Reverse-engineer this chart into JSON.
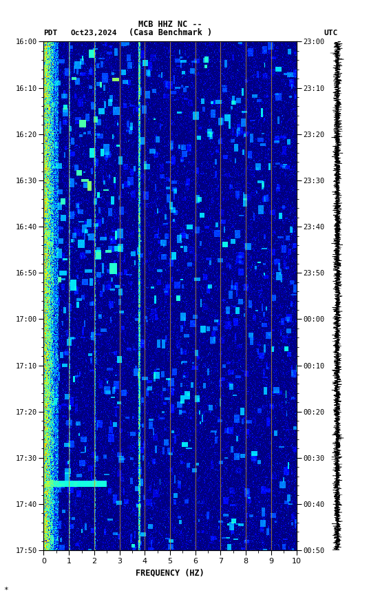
{
  "title_line1": "MCB HHZ NC --",
  "title_line2": "(Casa Benchmark )",
  "label_left": "PDT",
  "label_date": "Oct23,2024",
  "label_right": "UTC",
  "freq_min": 0,
  "freq_max": 10,
  "freq_xlabel": "FREQUENCY (HZ)",
  "time_ticks_left": [
    "16:00",
    "16:10",
    "16:20",
    "16:30",
    "16:40",
    "16:50",
    "17:00",
    "17:10",
    "17:20",
    "17:30",
    "17:40",
    "17:50"
  ],
  "time_ticks_right": [
    "23:00",
    "23:10",
    "23:20",
    "23:30",
    "23:40",
    "23:50",
    "00:00",
    "00:10",
    "00:20",
    "00:30",
    "00:40",
    "00:50"
  ],
  "vertical_lines_freq": [
    1.0,
    2.0,
    3.0,
    4.0,
    5.0,
    6.0,
    7.0,
    8.0,
    9.0
  ],
  "vline_color": "#c8a020",
  "background_color": "#ffffff",
  "waveform_color": "#000000",
  "spec_vmin": -1.0,
  "spec_vmax": 2.5
}
